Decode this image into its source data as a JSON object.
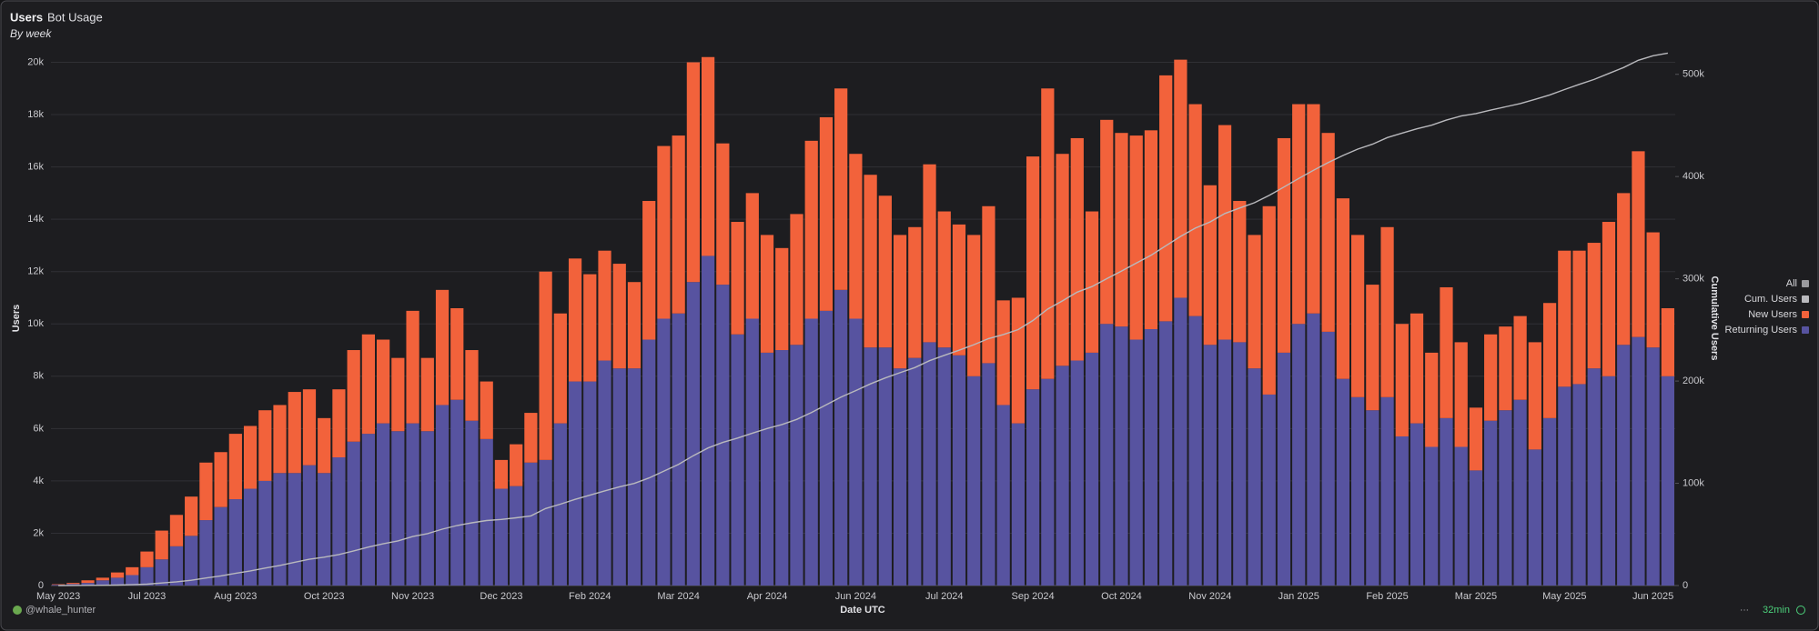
{
  "chart_data": {
    "type": "bar",
    "stacked": true,
    "title": "Users",
    "tab": "Bot Usage",
    "subtitle": "By week",
    "xlabel": "Date UTC",
    "ylabel": "Users",
    "y2label": "Cumulative Users",
    "legend_all_label": "All",
    "legend_all_color": "#9a9a9e",
    "legend_position": "right",
    "grid": true,
    "author": "@whale_hunter",
    "refresh": "32min",
    "categories": [
      "May 2023",
      null,
      null,
      null,
      null,
      null,
      "Jul 2023",
      null,
      null,
      null,
      null,
      null,
      "Aug 2023",
      null,
      null,
      null,
      null,
      null,
      "Oct 2023",
      null,
      null,
      null,
      null,
      null,
      "Nov 2023",
      null,
      null,
      null,
      null,
      null,
      "Dec 2023",
      null,
      null,
      null,
      null,
      null,
      "Feb 2024",
      null,
      null,
      null,
      null,
      null,
      "Mar 2024",
      null,
      null,
      null,
      null,
      null,
      "Apr 2024",
      null,
      null,
      null,
      null,
      null,
      "Jun 2024",
      null,
      null,
      null,
      null,
      null,
      "Jul 2024",
      null,
      null,
      null,
      null,
      null,
      "Sep 2024",
      null,
      null,
      null,
      null,
      null,
      "Oct 2024",
      null,
      null,
      null,
      null,
      null,
      "Nov 2024",
      null,
      null,
      null,
      null,
      null,
      "Jan 2025",
      null,
      null,
      null,
      null,
      null,
      "Feb 2025",
      null,
      null,
      null,
      null,
      null,
      "Mar 2025",
      null,
      null,
      null,
      null,
      null,
      "May 2025",
      null,
      null,
      null,
      null,
      null,
      "Jun 2025",
      null
    ],
    "ylim": [
      0,
      20400
    ],
    "yticks": [
      0,
      {
        "value": 2000,
        "label": "2k"
      },
      {
        "value": 4000,
        "label": "4k"
      },
      {
        "value": 6000,
        "label": "6k"
      },
      {
        "value": 8000,
        "label": "8k"
      },
      {
        "value": 10000,
        "label": "10k"
      },
      {
        "value": 12000,
        "label": "12k"
      },
      {
        "value": 14000,
        "label": "14k"
      },
      {
        "value": 16000,
        "label": "16k"
      },
      {
        "value": 18000,
        "label": "18k"
      },
      {
        "value": 20000,
        "label": "20k"
      }
    ],
    "y2lim": [
      0,
      522000
    ],
    "y2ticks": [
      0,
      {
        "value": 100000,
        "label": "100k"
      },
      {
        "value": 200000,
        "label": "200k"
      },
      {
        "value": 300000,
        "label": "300k"
      },
      {
        "value": 400000,
        "label": "400k"
      },
      {
        "value": 500000,
        "label": "500k"
      }
    ],
    "series": [
      {
        "name": "Returning Users",
        "color": "#5753a0",
        "values": [
          30,
          60,
          100,
          200,
          300,
          400,
          700,
          1000,
          1500,
          1900,
          2500,
          3000,
          3300,
          3700,
          4000,
          4300,
          4300,
          4600,
          4300,
          4900,
          5500,
          5800,
          6200,
          5900,
          6200,
          5900,
          6900,
          7100,
          6300,
          5600,
          3700,
          3800,
          4700,
          4800,
          6200,
          7800,
          7800,
          8600,
          8300,
          8300,
          9400,
          10200,
          10400,
          11600,
          12600,
          11500,
          9600,
          10200,
          8900,
          9000,
          9200,
          10200,
          10500,
          11300,
          10200,
          9100,
          9100,
          8300,
          8700,
          9300,
          9100,
          8800,
          8000,
          8500,
          6900,
          6200,
          7500,
          7900,
          8400,
          8600,
          8900,
          10000,
          9900,
          9400,
          9800,
          10100,
          11000,
          10300,
          9200,
          9400,
          9300,
          8300,
          7300,
          8900,
          10000,
          10400,
          9700,
          7900,
          7200,
          6700,
          7200,
          5700,
          6200,
          5300,
          6400,
          5300,
          4400,
          6300,
          6700,
          7100,
          5200,
          6400,
          7600,
          7700,
          8300,
          8000,
          9200,
          9500,
          9100,
          8000
        ]
      },
      {
        "name": "New Users",
        "color": "#f2623b",
        "values": [
          20,
          40,
          100,
          100,
          200,
          300,
          600,
          1100,
          1200,
          1500,
          2200,
          2100,
          2500,
          2400,
          2700,
          2600,
          3100,
          2900,
          2100,
          2600,
          3500,
          3800,
          3200,
          2800,
          4300,
          2800,
          4400,
          3500,
          2700,
          2200,
          1100,
          1600,
          1900,
          7200,
          4200,
          4700,
          4100,
          4200,
          4000,
          3300,
          5300,
          6600,
          6800,
          8400,
          7600,
          5400,
          4300,
          4800,
          4500,
          3900,
          5000,
          6800,
          7400,
          7700,
          6300,
          6600,
          5800,
          5100,
          5000,
          6800,
          5200,
          5000,
          5400,
          6000,
          4000,
          4800,
          8900,
          11100,
          8100,
          8500,
          5400,
          7800,
          7400,
          7800,
          7600,
          9400,
          9100,
          8100,
          6100,
          8200,
          5400,
          5100,
          7200,
          8200,
          8400,
          8000,
          7600,
          6900,
          6200,
          4800,
          6500,
          4300,
          4200,
          3600,
          5000,
          4000,
          2400,
          3300,
          3200,
          3200,
          4100,
          4400,
          5200,
          5100,
          4800,
          5900,
          5800,
          7100,
          4400,
          2600
        ]
      },
      {
        "name": "Cum. Users",
        "color": "#b9b9bd",
        "type": "line",
        "axis": "y2",
        "values": [
          20,
          60,
          160,
          260,
          460,
          760,
          1360,
          2460,
          3660,
          5160,
          7360,
          9460,
          11960,
          14360,
          17060,
          19660,
          22760,
          25660,
          27760,
          30360,
          33860,
          37660,
          40860,
          43660,
          47960,
          50760,
          55160,
          58660,
          61360,
          63560,
          64660,
          66260,
          68160,
          75360,
          79560,
          84260,
          88360,
          92560,
          96560,
          99860,
          105160,
          111760,
          118560,
          126960,
          134560,
          139960,
          144260,
          149060,
          153560,
          157460,
          162460,
          169260,
          176660,
          184360,
          190660,
          197260,
          203060,
          208160,
          213160,
          219960,
          225160,
          230160,
          235560,
          241560,
          245560,
          250360,
          259260,
          270360,
          278460,
          286960,
          292360,
          300160,
          307560,
          315360,
          322960,
          332360,
          341460,
          349560,
          355660,
          363860,
          369260,
          374360,
          381560,
          389760,
          398160,
          406160,
          413760,
          420660,
          426860,
          431660,
          438160,
          442460,
          446660,
          450260,
          455260,
          459260,
          461660,
          464960,
          468160,
          471360,
          475460,
          479860,
          485060,
          490160,
          494960,
          500860,
          506660,
          513760,
          518160,
          520760
        ]
      }
    ]
  }
}
